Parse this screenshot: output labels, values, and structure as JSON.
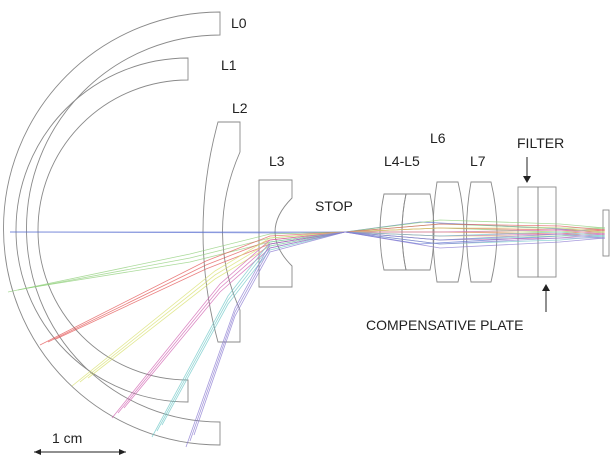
{
  "labels": {
    "l0": "L0",
    "l1": "L1",
    "l2": "L2",
    "l3": "L3",
    "stop": "STOP",
    "l4l5": "L4-L5",
    "l6": "L6",
    "l7": "L7",
    "filter": "FILTER",
    "compensative_plate": "COMPENSATIVE PLATE",
    "scale": "1 cm"
  },
  "ray_bundles": [
    {
      "name": "on-axis",
      "color": "#5a6fd0"
    },
    {
      "name": "field-1",
      "color": "#8fcf7a"
    },
    {
      "name": "field-2",
      "color": "#e35555"
    },
    {
      "name": "field-3",
      "color": "#d8e070"
    },
    {
      "name": "field-4",
      "color": "#d060b0"
    },
    {
      "name": "field-5",
      "color": "#70c8c8"
    },
    {
      "name": "field-6",
      "color": "#8878d0"
    }
  ]
}
